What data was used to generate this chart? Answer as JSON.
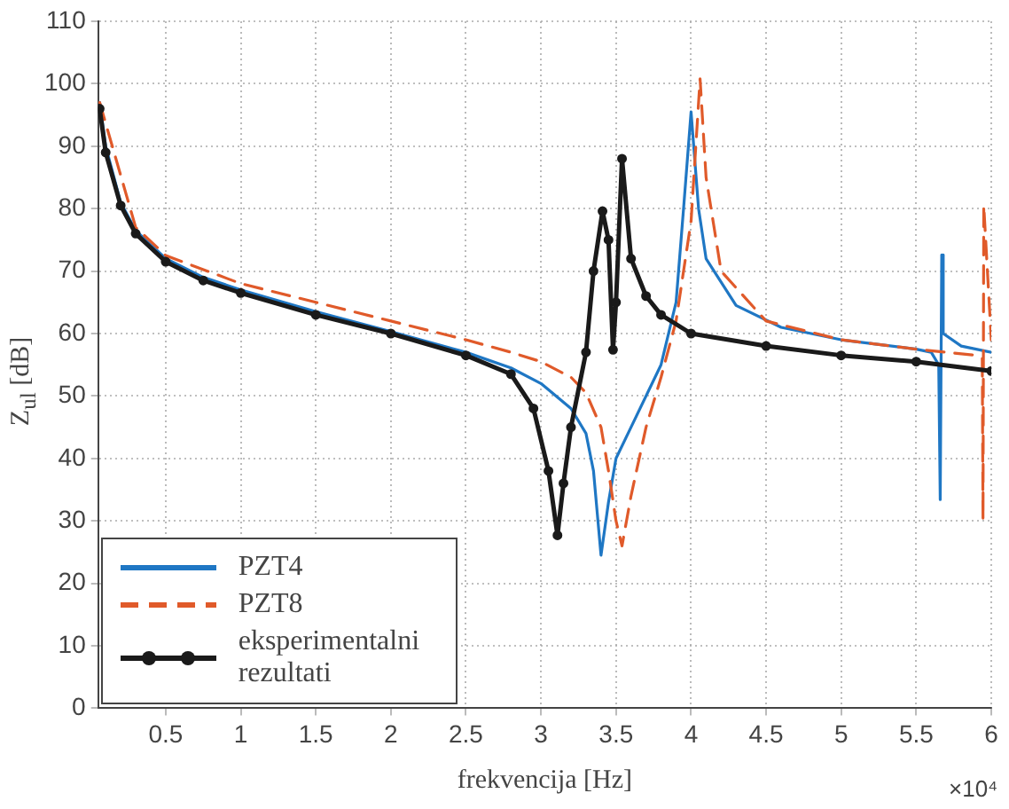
{
  "chart_data": {
    "type": "line",
    "xlabel": "frekvencija [Hz]",
    "ylabel": "Z$_{ul}$ [dB]",
    "annotations": [
      "×10⁴"
    ],
    "xlim": [
      0.05,
      6
    ],
    "xticks": [
      0.5,
      1,
      1.5,
      2,
      2.5,
      3,
      3.5,
      4,
      4.5,
      5,
      5.5,
      6
    ],
    "ylim": [
      0,
      110
    ],
    "yticks": [
      0,
      10,
      20,
      30,
      40,
      50,
      60,
      70,
      80,
      90,
      100,
      110
    ],
    "grid": true,
    "legend": "bottom left",
    "series": [
      {
        "name": "PZT4",
        "color": "#1f77c4",
        "line_style": "solid",
        "marker": "none",
        "x": [
          0.06,
          0.1,
          0.2,
          0.3,
          0.5,
          0.75,
          1,
          1.5,
          2,
          2.5,
          2.8,
          3,
          3.2,
          3.3,
          3.35,
          3.4,
          3.45,
          3.5,
          3.6,
          3.8,
          3.9,
          3.95,
          4,
          4.05,
          4.1,
          4.3,
          4.6,
          5,
          5.5,
          5.6,
          5.65,
          5.66,
          5.67,
          5.68,
          5.8,
          6
        ],
        "values": [
          97,
          90,
          81,
          76.5,
          72,
          69,
          67,
          63.5,
          60.3,
          57,
          54.5,
          52,
          48,
          44,
          38,
          24.5,
          33,
          40,
          45,
          55,
          65,
          80,
          95.5,
          80,
          72,
          64.5,
          61,
          59,
          57.5,
          57,
          55,
          33.4,
          72.6,
          60,
          58,
          57
        ]
      },
      {
        "name": "PZT8",
        "color": "#e05a2a",
        "line_style": "dashed",
        "marker": "none",
        "x": [
          0.06,
          0.3,
          0.5,
          1,
          1.5,
          2,
          2.5,
          2.8,
          3,
          3.2,
          3.3,
          3.4,
          3.45,
          3.5,
          3.54,
          3.6,
          3.7,
          3.8,
          3.9,
          4,
          4.06,
          4.1,
          4.2,
          4.5,
          5,
          5.5,
          5.9,
          5.94,
          5.945,
          5.95,
          6
        ],
        "values": [
          97,
          77,
          72.5,
          68,
          65,
          62,
          59,
          57,
          55.5,
          53,
          50.5,
          45,
          38,
          30,
          26,
          34,
          45,
          53,
          62,
          78,
          100.8,
          85,
          70,
          62,
          59,
          57.5,
          56.5,
          56,
          30.2,
          80.5,
          59
        ]
      },
      {
        "name": "eksperimentalni rezultati",
        "color": "#1a1a1a",
        "line_style": "solid",
        "marker": "circle",
        "x": [
          0.06,
          0.1,
          0.2,
          0.3,
          0.5,
          0.75,
          1,
          1.5,
          2,
          2.5,
          2.8,
          2.95,
          3.05,
          3.11,
          3.15,
          3.2,
          3.3,
          3.35,
          3.41,
          3.45,
          3.48,
          3.5,
          3.54,
          3.6,
          3.7,
          3.8,
          4,
          4.5,
          5,
          5.5,
          6
        ],
        "values": [
          96,
          89,
          80.5,
          76,
          71.5,
          68.5,
          66.5,
          63,
          60,
          56.5,
          53.5,
          48,
          38,
          27.7,
          36,
          45,
          57,
          70,
          79.6,
          75,
          57.4,
          65,
          88,
          72,
          66,
          63,
          60,
          58,
          56.5,
          55.5,
          54
        ]
      }
    ]
  }
}
